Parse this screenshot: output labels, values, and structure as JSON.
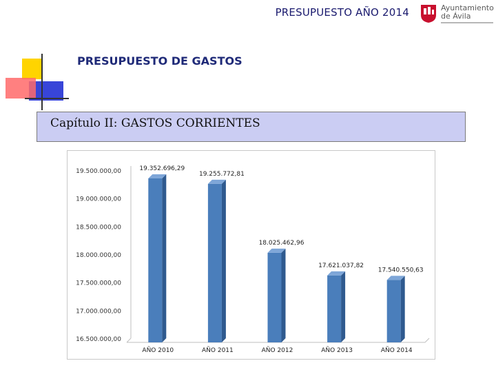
{
  "header": {
    "title": "PRESUPUESTO AÑO 2014",
    "logo_line1": "Ayuntamiento",
    "logo_line2": "de Ávila",
    "brand_color": "#c8102e"
  },
  "section_title": "PRESUPUESTO DE GASTOS",
  "chapter_title": "Capítulo II: GASTOS CORRIENTES",
  "chart_data": {
    "type": "bar",
    "categories": [
      "AÑO 2010",
      "AÑO 2011",
      "AÑO 2012",
      "AÑO 2013",
      "AÑO 2014"
    ],
    "values": [
      19352696.29,
      19255772.81,
      18025462.96,
      17621037.82,
      17540550.63
    ],
    "value_labels": [
      "19.352.696,29",
      "19.255.772,81",
      "18.025.462,96",
      "17.621.037,82",
      "17.540.550,63"
    ],
    "ylim": [
      16500000,
      19500000
    ],
    "yticks": [
      16500000,
      17000000,
      17500000,
      18000000,
      18500000,
      19000000,
      19500000
    ],
    "ytick_labels": [
      "16.500.000,00",
      "17.000.000,00",
      "17.500.000,00",
      "18.000.000,00",
      "18.500.000,00",
      "19.000.000,00",
      "19.500.000,00"
    ],
    "bar_color": "#4a7ebb",
    "grid": false,
    "legend": "none"
  }
}
